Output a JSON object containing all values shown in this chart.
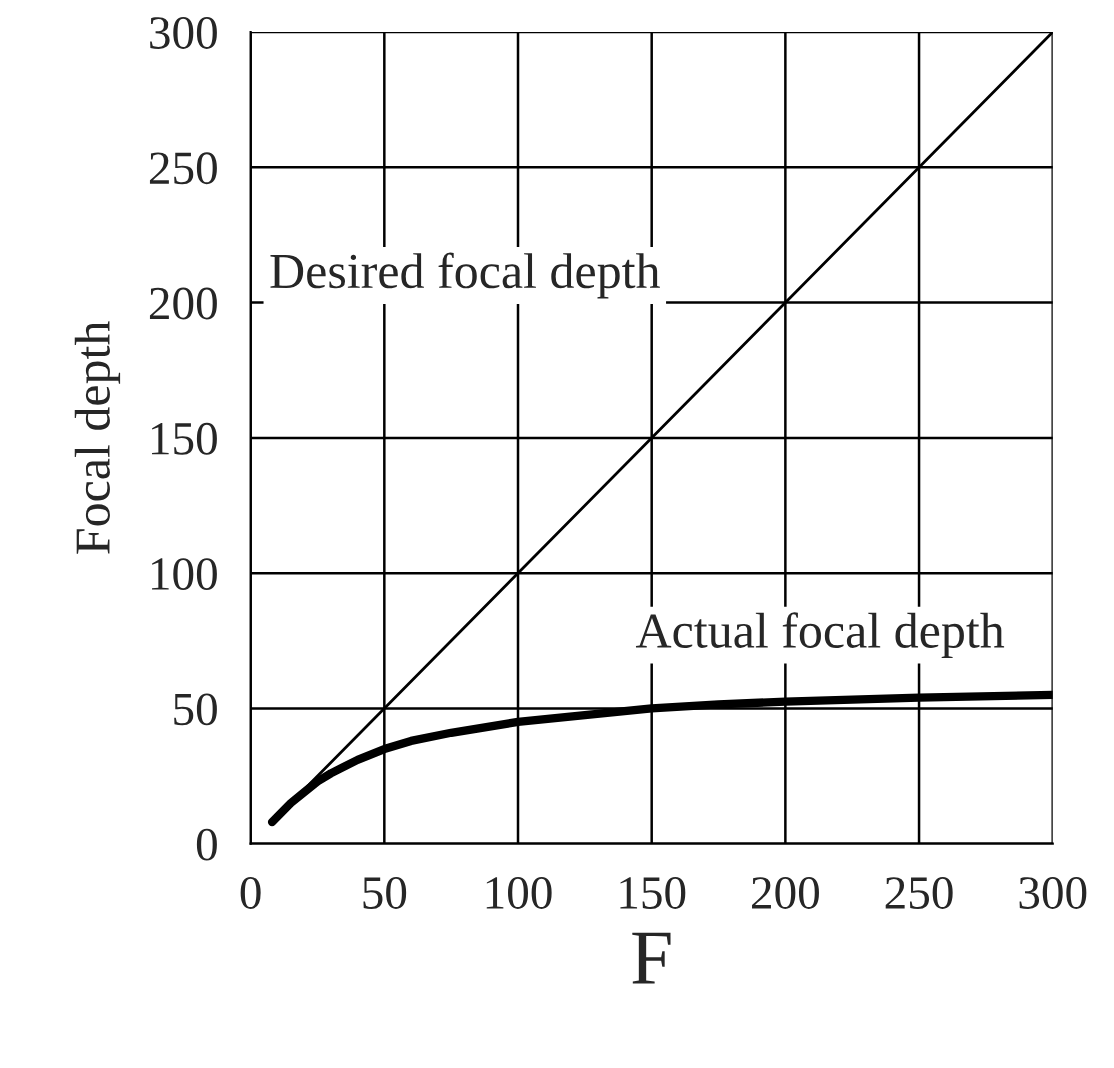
{
  "chart_data": {
    "type": "line",
    "xlabel": "F",
    "ylabel": "Focal depth",
    "series": [
      {
        "color": "#000000",
        "x": [
          8,
          300
        ],
        "values": [
          8,
          300
        ]
      },
      {
        "color": "#000000",
        "x": [
          8,
          15,
          20,
          25,
          30,
          40,
          50,
          60,
          75,
          100,
          125,
          150,
          175,
          200,
          250,
          300
        ],
        "values": [
          8,
          15,
          19,
          23,
          26,
          31,
          35,
          38,
          41,
          45,
          47.5,
          50,
          51.5,
          52.5,
          54,
          55
        ]
      }
    ],
    "annotations": [
      "Desired focal depth",
      "Actual focal depth"
    ],
    "xlim": [
      0,
      300
    ],
    "ylim": [
      0,
      300
    ],
    "xticks": [
      0,
      50,
      100,
      150,
      200,
      250,
      300
    ],
    "yticks": [
      0,
      50,
      100,
      150,
      200,
      250,
      300
    ],
    "grid": true,
    "marker": "none",
    "line_style": "solid"
  }
}
